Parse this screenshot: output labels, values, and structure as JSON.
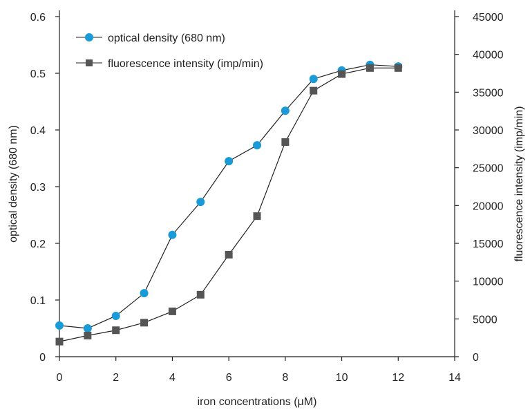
{
  "chart_data": {
    "type": "line",
    "xlabel": "iron concentrations (μM)",
    "ylabel_left": "optical density (680 nm)",
    "ylabel_right": "fluorescence intensity (imp/min)",
    "xlim": [
      0,
      14
    ],
    "ylim_left": [
      0,
      0.6
    ],
    "ylim_right": [
      0,
      45000
    ],
    "x_ticks": [
      0,
      2,
      4,
      6,
      8,
      10,
      12,
      14
    ],
    "y_left_ticks": [
      0,
      0.1,
      0.2,
      0.3,
      0.4,
      0.5,
      0.6
    ],
    "y_right_ticks": [
      0,
      5000,
      10000,
      15000,
      20000,
      25000,
      30000,
      35000,
      40000,
      45000
    ],
    "grid": false,
    "legend_position": "top-left",
    "series": [
      {
        "name": "optical density (680 nm)",
        "axis": "left",
        "marker": "circle",
        "color": "#1a9ad6",
        "x": [
          0,
          1,
          2,
          3,
          4,
          5,
          6,
          7,
          8,
          9,
          10,
          11,
          12
        ],
        "y": [
          0.055,
          0.05,
          0.072,
          0.112,
          0.215,
          0.273,
          0.345,
          0.373,
          0.434,
          0.49,
          0.505,
          0.515,
          0.512
        ]
      },
      {
        "name": "fluorescence intensity (imp/min)",
        "axis": "right",
        "marker": "square",
        "color": "#555555",
        "x": [
          0,
          1,
          2,
          3,
          4,
          5,
          6,
          7,
          8,
          9,
          10,
          11,
          12
        ],
        "y": [
          2000,
          2800,
          3500,
          4500,
          6000,
          8200,
          13500,
          18600,
          28400,
          35200,
          37400,
          38200,
          38200
        ]
      }
    ]
  }
}
